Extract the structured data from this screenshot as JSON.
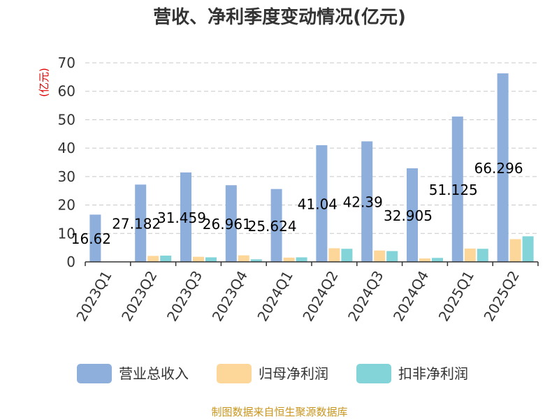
{
  "chart_data": {
    "type": "bar",
    "title": "营收、净利季度变动情况(亿元)",
    "ylabel": "(亿元)",
    "ylim": [
      0,
      70
    ],
    "yticks": [
      0,
      10,
      20,
      30,
      40,
      50,
      60,
      70
    ],
    "grid": true,
    "legend": "bottom",
    "categories": [
      "2023Q1",
      "2023Q2",
      "2023Q3",
      "2023Q4",
      "2024Q1",
      "2024Q2",
      "2024Q3",
      "2024Q4",
      "2025Q1",
      "2025Q2"
    ],
    "series": [
      {
        "name": "营业总收入",
        "color": "#8eaedc",
        "values": [
          16.62,
          27.182,
          31.459,
          26.961,
          25.624,
          41.04,
          42.39,
          32.905,
          51.125,
          66.296
        ]
      },
      {
        "name": "归母净利润",
        "color": "#fdd69a",
        "values": [
          null,
          2.1,
          1.8,
          2.3,
          1.5,
          4.8,
          4.0,
          1.2,
          4.7,
          8.0
        ]
      },
      {
        "name": "扣非净利润",
        "color": "#82d4d8",
        "values": [
          null,
          2.2,
          1.6,
          0.9,
          1.6,
          4.6,
          3.8,
          1.4,
          4.6,
          9.0
        ]
      }
    ],
    "data_labels": [
      "16.62",
      "27.182",
      "31.459",
      "26.961",
      "25.624",
      "41.04",
      "42.39",
      "32.905",
      "51.125",
      "66.296"
    ]
  },
  "source": "制图数据来自恒生聚源数据库"
}
